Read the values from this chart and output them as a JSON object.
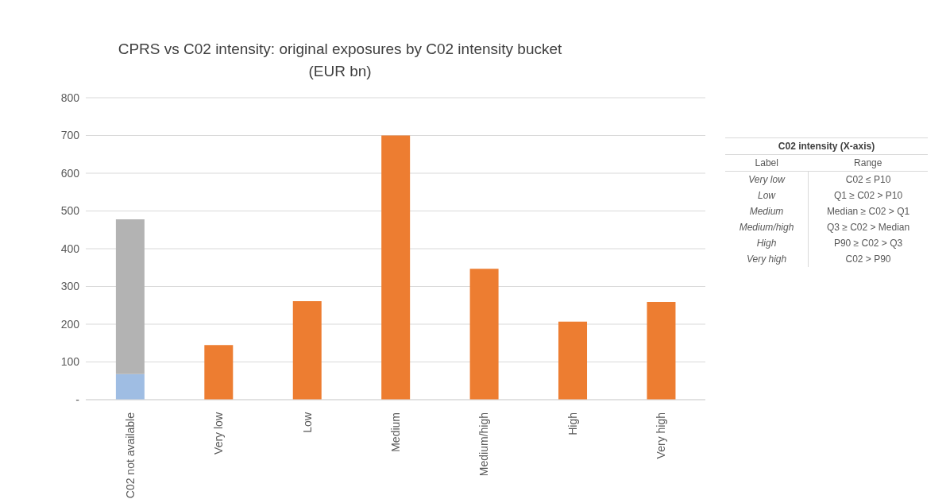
{
  "chart_data": {
    "type": "bar",
    "title": "CPRS vs C02 intensity: original exposures by C02 intensity bucket (EUR bn)",
    "categories": [
      "C02 not available",
      "Very low",
      "Low",
      "Medium",
      "Medium/high",
      "High",
      "Very high"
    ],
    "series": [
      {
        "color": "#9fbde3",
        "values": [
          68,
          null,
          null,
          null,
          null,
          null,
          null
        ]
      },
      {
        "color": "#b3b3b3",
        "values": [
          410,
          null,
          null,
          null,
          null,
          null,
          null
        ]
      },
      {
        "color": "#ed7d31",
        "values": [
          null,
          145,
          261,
          700,
          347,
          207,
          259
        ]
      }
    ],
    "stacked": true,
    "ylim": [
      0,
      800
    ],
    "yticks": [
      {
        "value": 0,
        "label": "-"
      },
      100,
      200,
      300,
      400,
      500,
      600,
      700,
      800
    ],
    "grid": "y",
    "legend": false,
    "annotations": [
      "C02 intensity (X-axis)",
      "Label",
      "Range",
      "Very low",
      "C02 ≤ P10",
      "Low",
      "Q1 ≥ C02 > P10",
      "Medium",
      "Median ≥ C02 > Q1",
      "Medium/high",
      "Q3 ≥ C02 > Median",
      "High",
      "P90 ≥ C02 > Q3",
      "Very high",
      "C02 > P90"
    ]
  }
}
